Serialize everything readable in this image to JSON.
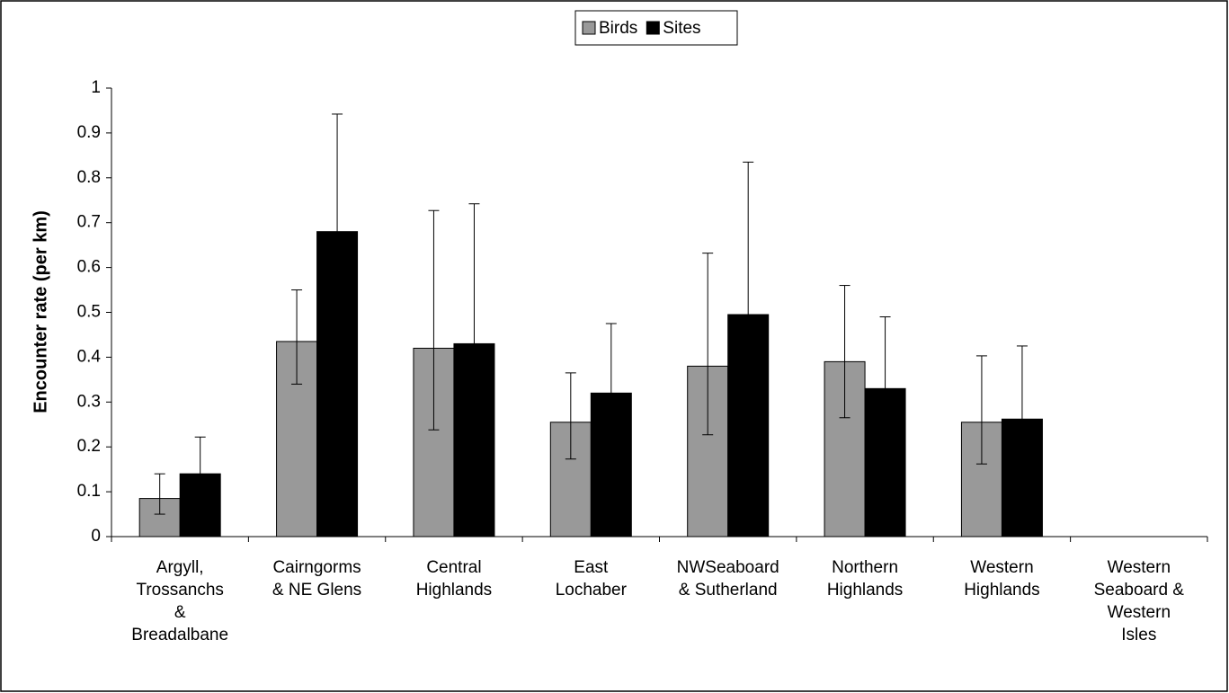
{
  "chart_data": {
    "type": "bar",
    "y_label": "Encounter rate (per km)",
    "categories": [
      "Argyll,\nTrossanchs\n&\nBreadalbane",
      "Cairngorms\n& NE Glens",
      "Central\nHighlands",
      "East\nLochaber",
      "NWSeaboard\n& Sutherland",
      "Northern\nHighlands",
      "Western\nHighlands",
      "Western\nSeaboard &\nWestern\nIsles"
    ],
    "series": [
      {
        "name": "Birds",
        "color": "#999999",
        "values": [
          0.085,
          0.435,
          0.42,
          0.255,
          0.38,
          0.39,
          0.255,
          null
        ],
        "lower": [
          0.05,
          0.34,
          0.238,
          0.173,
          0.227,
          0.265,
          0.162,
          null
        ],
        "upper": [
          0.14,
          0.55,
          0.727,
          0.365,
          0.632,
          0.56,
          0.403,
          null
        ]
      },
      {
        "name": "Sites",
        "color": "#000000",
        "values": [
          0.14,
          0.68,
          0.43,
          0.32,
          0.495,
          0.33,
          0.262,
          null
        ],
        "upper": [
          0.222,
          0.942,
          0.742,
          0.475,
          0.835,
          0.49,
          0.425,
          null
        ]
      }
    ],
    "ylim": [
      0,
      1
    ],
    "yticks": [
      0,
      0.1,
      0.2,
      0.3,
      0.4,
      0.5,
      0.6,
      0.7,
      0.8,
      0.9,
      1
    ],
    "grid": false,
    "legend": "top"
  }
}
